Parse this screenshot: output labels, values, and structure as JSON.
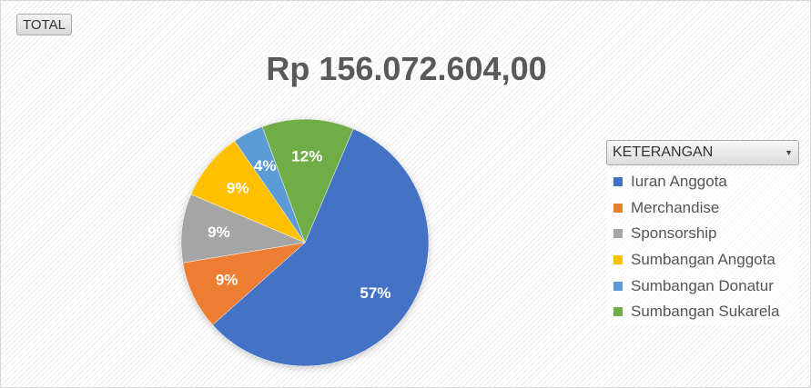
{
  "field_button": {
    "label": "TOTAL"
  },
  "legend_header": {
    "label": "KETERANGAN"
  },
  "chart_data": {
    "type": "pie",
    "title": "Rp 156.072.604,00",
    "start_angle_deg": 23,
    "slices": [
      {
        "name": "Iuran Anggota",
        "value": 57,
        "label": "57%",
        "color": "#4472C4"
      },
      {
        "name": "Merchandise",
        "value": 9,
        "label": "9%",
        "color": "#ED7D31"
      },
      {
        "name": "Sponsorship",
        "value": 9,
        "label": "9%",
        "color": "#A5A5A5"
      },
      {
        "name": "Sumbangan Anggota",
        "value": 9,
        "label": "9%",
        "color": "#FFC000"
      },
      {
        "name": "Sumbangan Donatur",
        "value": 4,
        "label": "4%",
        "color": "#5B9BD5"
      },
      {
        "name": "Sumbangan Sukarela",
        "value": 12,
        "label": "12%",
        "color": "#70AD47"
      }
    ],
    "legend_position": "right"
  }
}
